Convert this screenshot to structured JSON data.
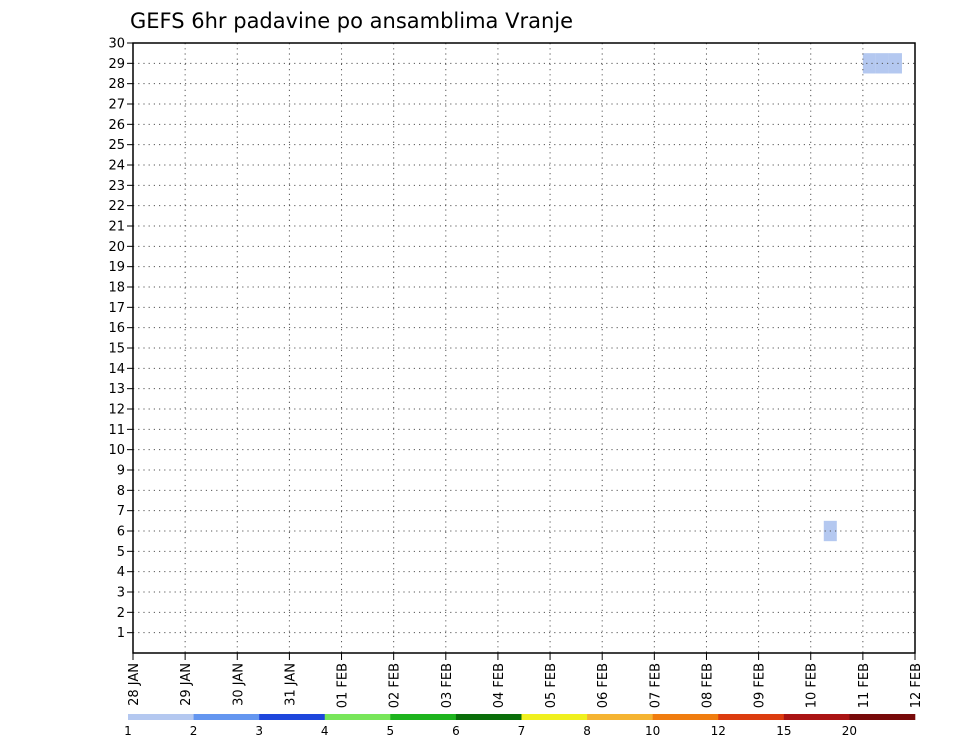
{
  "chart_data": {
    "type": "heatmap",
    "title": "GEFS 6hr padavine po ansamblima Vranje",
    "xlabel": "",
    "ylabel": "",
    "x_tick_labels": [
      "28 JAN",
      "29 JAN",
      "30 JAN",
      "31 JAN",
      "01 FEB",
      "02 FEB",
      "03 FEB",
      "04 FEB",
      "05 FEB",
      "06 FEB",
      "07 FEB",
      "08 FEB",
      "09 FEB",
      "10 FEB",
      "11 FEB",
      "12 FEB"
    ],
    "y_tick_labels": [
      "1",
      "2",
      "3",
      "4",
      "5",
      "6",
      "7",
      "8",
      "9",
      "10",
      "11",
      "12",
      "13",
      "14",
      "15",
      "16",
      "17",
      "18",
      "19",
      "20",
      "21",
      "22",
      "23",
      "24",
      "25",
      "26",
      "27",
      "28",
      "29",
      "30"
    ],
    "x_range_days": [
      0,
      15
    ],
    "y_range": [
      0,
      30
    ],
    "grid": true,
    "legend_position": "bottom",
    "legend": {
      "colors": [
        "#b4c8f0",
        "#6496f0",
        "#1e46dc",
        "#78e65a",
        "#1eb41e",
        "#0a6e0a",
        "#f0f01e",
        "#f5b432",
        "#f07d0f",
        "#dc3c0f",
        "#aa1414",
        "#780a0a"
      ],
      "labels": [
        "1",
        "2",
        "3",
        "4",
        "5",
        "6",
        "7",
        "8",
        "10",
        "12",
        "15",
        "20"
      ]
    },
    "x_time_unit": "6-hour steps after 28 JAN 00Z (one day = 4 steps)",
    "cells": [
      {
        "member": 29,
        "step": 56,
        "class": 1
      },
      {
        "member": 29,
        "step": 57,
        "class": 1
      },
      {
        "member": 29,
        "step": 58,
        "class": 1
      },
      {
        "member": 29,
        "step": 115,
        "class": 1
      },
      {
        "member": 29,
        "step": 116,
        "class": 4
      },
      {
        "member": 28,
        "step": 144,
        "class": 3
      },
      {
        "member": 27,
        "step": 87,
        "class": 4
      },
      {
        "member": 27,
        "step": 102,
        "class": 2
      },
      {
        "member": 27,
        "step": 125,
        "class": 4
      },
      {
        "member": 27,
        "step": 133,
        "class": 4
      },
      {
        "member": 27,
        "step": 134,
        "class": 2
      },
      {
        "member": 25,
        "step": 124,
        "class": 9
      },
      {
        "member": 25,
        "step": 125,
        "class": 2
      },
      {
        "member": 25,
        "step": 132,
        "class": 2
      },
      {
        "member": 25,
        "step": 133,
        "class": 5
      },
      {
        "member": 25,
        "step": 134,
        "class": 2
      },
      {
        "member": 24,
        "step": 85,
        "class": 1
      },
      {
        "member": 24,
        "step": 95,
        "class": 1
      },
      {
        "member": 24,
        "step": 133,
        "class": 2
      },
      {
        "member": 24,
        "step": 134,
        "class": 5
      },
      {
        "member": 24,
        "step": 135,
        "class": 2
      },
      {
        "member": 23,
        "step": 132,
        "class": 1
      },
      {
        "member": 22,
        "step": 62,
        "class": 2
      },
      {
        "member": 21,
        "step": 113,
        "class": 1
      },
      {
        "member": 21,
        "step": 132,
        "class": 2
      },
      {
        "member": 20,
        "step": 120,
        "class": 3
      },
      {
        "member": 20,
        "step": 121,
        "class": 10
      },
      {
        "member": 19,
        "step": 144,
        "class": 4
      },
      {
        "member": 18,
        "step": 133,
        "class": 4
      },
      {
        "member": 17,
        "step": 71,
        "class": 1
      },
      {
        "member": 17,
        "step": 103,
        "class": 4
      },
      {
        "member": 17,
        "step": 104,
        "class": 3
      },
      {
        "member": 17,
        "step": 105,
        "class": 2
      },
      {
        "member": 17,
        "step": 106,
        "class": 4
      },
      {
        "member": 17,
        "step": 107,
        "class": 1
      },
      {
        "member": 17,
        "step": 133,
        "class": 8
      },
      {
        "member": 17,
        "step": 134,
        "class": 6
      },
      {
        "member": 16,
        "step": 126,
        "class": 1
      },
      {
        "member": 15,
        "step": 85,
        "class": 1
      },
      {
        "member": 15,
        "step": 101,
        "class": 1
      },
      {
        "member": 15,
        "step": 116,
        "class": 3
      },
      {
        "member": 15,
        "step": 132,
        "class": 1
      },
      {
        "member": 14,
        "step": 65,
        "class": 1
      },
      {
        "member": 14,
        "step": 66,
        "class": 1
      },
      {
        "member": 14,
        "step": 67,
        "class": 1
      },
      {
        "member": 14,
        "step": 68,
        "class": 3
      },
      {
        "member": 14,
        "step": 132,
        "class": 1
      },
      {
        "member": 14,
        "step": 133,
        "class": 2
      },
      {
        "member": 14,
        "step": 144,
        "class": 2
      },
      {
        "member": 13,
        "step": 135,
        "class": 6
      },
      {
        "member": 12,
        "step": 105,
        "class": 4
      },
      {
        "member": 12,
        "step": 106,
        "class": 9
      },
      {
        "member": 12,
        "step": 123,
        "class": 1
      },
      {
        "member": 12,
        "step": 124,
        "class": 2
      },
      {
        "member": 12,
        "step": 130,
        "class": 1
      },
      {
        "member": 11,
        "step": 107,
        "class": 1
      },
      {
        "member": 11,
        "step": 108,
        "class": 1
      },
      {
        "member": 11,
        "step": 109,
        "class": 1
      },
      {
        "member": 11,
        "step": 110,
        "class": 1
      },
      {
        "member": 11,
        "step": 111,
        "class": 3
      },
      {
        "member": 11,
        "step": 123,
        "class": 1
      },
      {
        "member": 11,
        "step": 124,
        "class": 10
      },
      {
        "member": 11,
        "step": 125,
        "class": 10
      },
      {
        "member": 11,
        "step": 126,
        "class": 3
      },
      {
        "member": 11,
        "step": 130,
        "class": 1
      },
      {
        "member": 9,
        "step": 89,
        "class": 1
      },
      {
        "member": 8,
        "step": 85,
        "class": 1
      },
      {
        "member": 8,
        "step": 93,
        "class": 1
      },
      {
        "member": 7,
        "step": 117,
        "class": 1
      },
      {
        "member": 6,
        "step": 53,
        "class": 1
      },
      {
        "member": 6,
        "step": 106,
        "class": 2
      },
      {
        "member": 6,
        "step": 107,
        "class": 5
      },
      {
        "member": 6,
        "step": 133,
        "class": 4
      },
      {
        "member": 6,
        "step": 134,
        "class": 4
      },
      {
        "member": 6,
        "step": 135,
        "class": 8
      },
      {
        "member": 6,
        "step": 136,
        "class": 5
      },
      {
        "member": 5,
        "step": 134,
        "class": 1
      },
      {
        "member": 5,
        "step": 135,
        "class": 2
      },
      {
        "member": 4,
        "step": 106,
        "class": 4
      },
      {
        "member": 3,
        "step": 133,
        "class": 6
      },
      {
        "member": 2,
        "step": 122,
        "class": 1
      },
      {
        "member": 2,
        "step": 123,
        "class": 2
      },
      {
        "member": 2,
        "step": 133,
        "class": 1
      },
      {
        "member": 1,
        "step": 109,
        "class": 3
      },
      {
        "member": 1,
        "step": 110,
        "class": 6
      },
      {
        "member": 1,
        "step": 111,
        "class": 4
      },
      {
        "member": 1,
        "step": 112,
        "class": 2
      },
      {
        "member": 1,
        "step": 116,
        "class": 2
      },
      {
        "member": 1,
        "step": 117,
        "class": 5
      },
      {
        "member": 1,
        "step": 118,
        "class": 4
      },
      {
        "member": 1,
        "step": 119,
        "class": 2
      },
      {
        "member": 0,
        "step": 101,
        "class": 2
      }
    ]
  }
}
